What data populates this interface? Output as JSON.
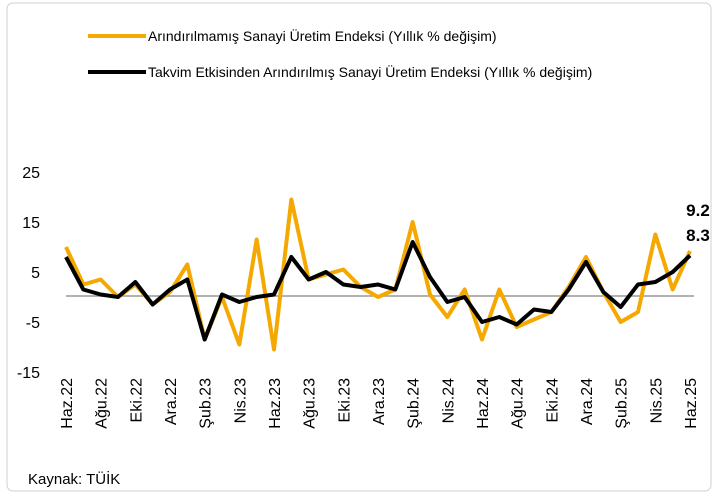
{
  "chart_data": {
    "type": "line",
    "categories": [
      "Haz.22",
      null,
      "Ağu.22",
      null,
      "Eki.22",
      null,
      "Ara.22",
      null,
      "Şub.23",
      null,
      "Nis.23",
      null,
      "Haz.23",
      null,
      "Ağu.23",
      null,
      "Eki.23",
      null,
      "Ara.23",
      null,
      "Şub.24",
      null,
      "Nis.24",
      null,
      "Haz.24",
      null,
      "Ağu.24",
      null,
      "Eki.24",
      null,
      "Ara.24",
      null,
      "Şub.25",
      null,
      "Nis.25",
      null,
      "Haz.25"
    ],
    "series": [
      {
        "name": "Arındırılmamış Sanayi Üretim Endeksi (Yıllık % değişim)",
        "color": "#f5a800",
        "values": [
          10,
          2.5,
          3.5,
          0,
          2.5,
          -1.5,
          1,
          6.5,
          -8.5,
          0,
          -9.5,
          11.5,
          -10.5,
          19.5,
          3.5,
          4.5,
          5.5,
          2,
          0,
          1.5,
          15,
          0.5,
          -4,
          1.5,
          -8.5,
          1.5,
          -6,
          -4.5,
          -3,
          2,
          8,
          1,
          -5,
          -3,
          12.5,
          1.5,
          9.2
        ]
      },
      {
        "name": "Takvim Etkisinden Arındırılmış Sanayi Üretim Endeksi (Yıllık % değişim)",
        "color": "#000000",
        "values": [
          8,
          1.5,
          0.5,
          0,
          3,
          -1.5,
          1.5,
          3.5,
          -8.5,
          0.5,
          -1,
          0,
          0.5,
          8,
          3.5,
          5,
          2.5,
          2,
          2.5,
          1.5,
          11,
          4,
          -1,
          0,
          -5,
          -4,
          -5.5,
          -2.5,
          -3,
          1.5,
          7,
          1,
          -2,
          2.5,
          3,
          5,
          8.3
        ]
      }
    ],
    "ylim": [
      -15,
      25
    ],
    "yticks": [
      -15,
      -5,
      5,
      15,
      25
    ],
    "source": "Kaynak: TÜİK"
  }
}
